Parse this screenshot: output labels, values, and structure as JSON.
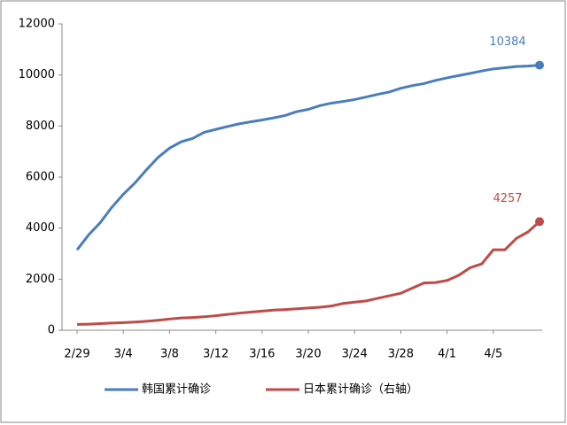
{
  "chart_data": {
    "type": "line",
    "categories": [
      "2/29",
      null,
      null,
      null,
      "3/4",
      null,
      null,
      null,
      "3/8",
      null,
      null,
      null,
      "3/12",
      null,
      null,
      null,
      "3/16",
      null,
      null,
      null,
      "3/20",
      null,
      null,
      null,
      "3/24",
      null,
      null,
      null,
      "3/28",
      null,
      null,
      null,
      "4/1",
      null,
      null,
      null,
      "4/5",
      null,
      null,
      null,
      null
    ],
    "series": [
      {
        "name": "韩国累计确诊",
        "color": "#4a7ebb",
        "values": [
          3150,
          3736,
          4212,
          4812,
          5328,
          5766,
          6284,
          6767,
          7134,
          7382,
          7513,
          7755,
          7869,
          7979,
          8086,
          8162,
          8236,
          8320,
          8413,
          8565,
          8652,
          8799,
          8897,
          8961,
          9037,
          9137,
          9241,
          9332,
          9478,
          9583,
          9661,
          9786,
          9887,
          9976,
          10062,
          10156,
          10237,
          10284,
          10331,
          10350,
          10384
        ]
      },
      {
        "name": "日本累计确诊（右轴）",
        "color": "#be4b48",
        "values": [
          230,
          240,
          260,
          280,
          300,
          320,
          350,
          390,
          440,
          480,
          500,
          530,
          570,
          620,
          670,
          710,
          750,
          790,
          810,
          840,
          870,
          900,
          950,
          1050,
          1100,
          1150,
          1250,
          1350,
          1450,
          1650,
          1850,
          1870,
          1950,
          2150,
          2450,
          2600,
          3150,
          3150,
          3600,
          3850,
          4257
        ]
      }
    ],
    "ylim": [
      0,
      12000
    ],
    "yticks": [
      0,
      2000,
      4000,
      6000,
      8000,
      10000,
      12000
    ]
  }
}
